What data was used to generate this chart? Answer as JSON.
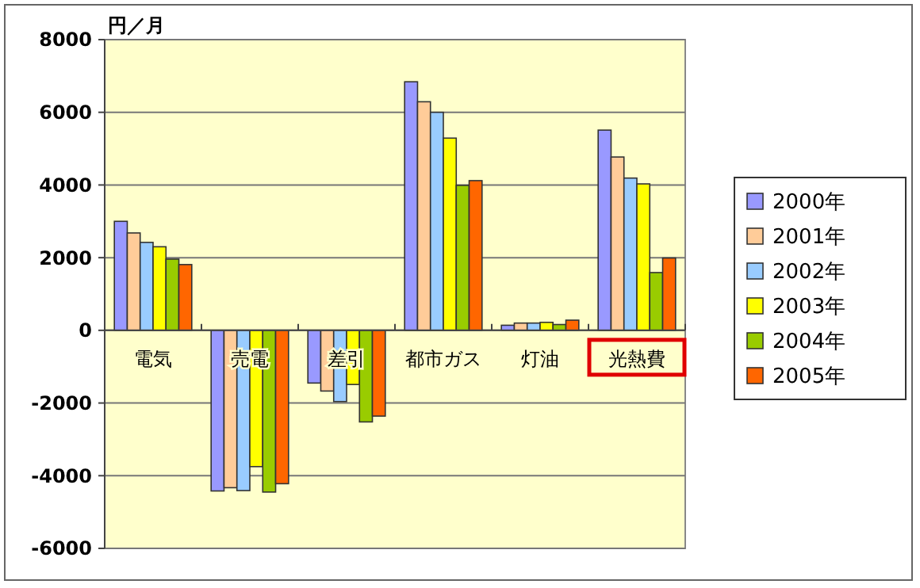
{
  "chart_data": {
    "type": "bar",
    "ylabel": "円／月",
    "categories": [
      "電気",
      "売電",
      "差引",
      "都市ガス",
      "灯油",
      "光熱費"
    ],
    "series": [
      {
        "name": "2000年",
        "color": "#9999ff",
        "values": [
          3000,
          -4420,
          -1450,
          6840,
          140,
          5510
        ]
      },
      {
        "name": "2001年",
        "color": "#ffcc99",
        "values": [
          2680,
          -4330,
          -1670,
          6290,
          200,
          4770
        ]
      },
      {
        "name": "2002年",
        "color": "#99ccff",
        "values": [
          2420,
          -4410,
          -1960,
          6000,
          200,
          4190
        ]
      },
      {
        "name": "2003年",
        "color": "#ffff00",
        "values": [
          2300,
          -3750,
          -1490,
          5290,
          220,
          4030
        ]
      },
      {
        "name": "2004年",
        "color": "#99cc00",
        "values": [
          1960,
          -4450,
          -2520,
          3990,
          160,
          1590
        ]
      },
      {
        "name": "2005年",
        "color": "#ff6600",
        "values": [
          1810,
          -4220,
          -2360,
          4120,
          280,
          1990
        ]
      }
    ],
    "ylim": [
      -6000,
      8000
    ],
    "yticks": [
      -6000,
      -4000,
      -2000,
      0,
      2000,
      4000,
      6000,
      8000
    ],
    "grid": "y",
    "legend": "right"
  }
}
